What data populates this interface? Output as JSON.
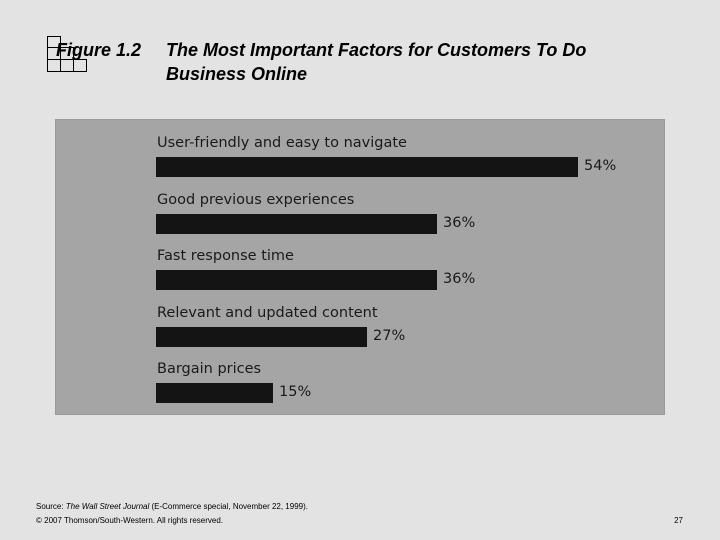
{
  "slide": {
    "figure_label": "Figure 1.2",
    "title_line1": "The Most Important Factors for Customers To Do",
    "title_line2": "Business Online"
  },
  "chart_data": {
    "type": "bar",
    "orientation": "horizontal",
    "title": "The Most Important Factors for Customers To Do Business Online",
    "categories": [
      "User-friendly and easy to navigate",
      "Good previous experiences",
      "Fast response time",
      "Relevant and updated content",
      "Bargain prices"
    ],
    "values": [
      54,
      36,
      36,
      27,
      15
    ],
    "value_labels": [
      "54%",
      "36%",
      "36%",
      "27%",
      "15%"
    ],
    "unit": "%",
    "xlim": [
      0,
      54
    ]
  },
  "footer": {
    "source_prefix": "Source: ",
    "source_title": "The Wall Street Journal",
    "source_suffix": " (E-Commerce special, November 22, 1999).",
    "copyright": "© 2007 Thomson/South-Western. All rights reserved.",
    "page_number": "27"
  },
  "colors": {
    "background": "#e3e3e3",
    "panel": "#a5a5a5",
    "bar": "#141414"
  }
}
